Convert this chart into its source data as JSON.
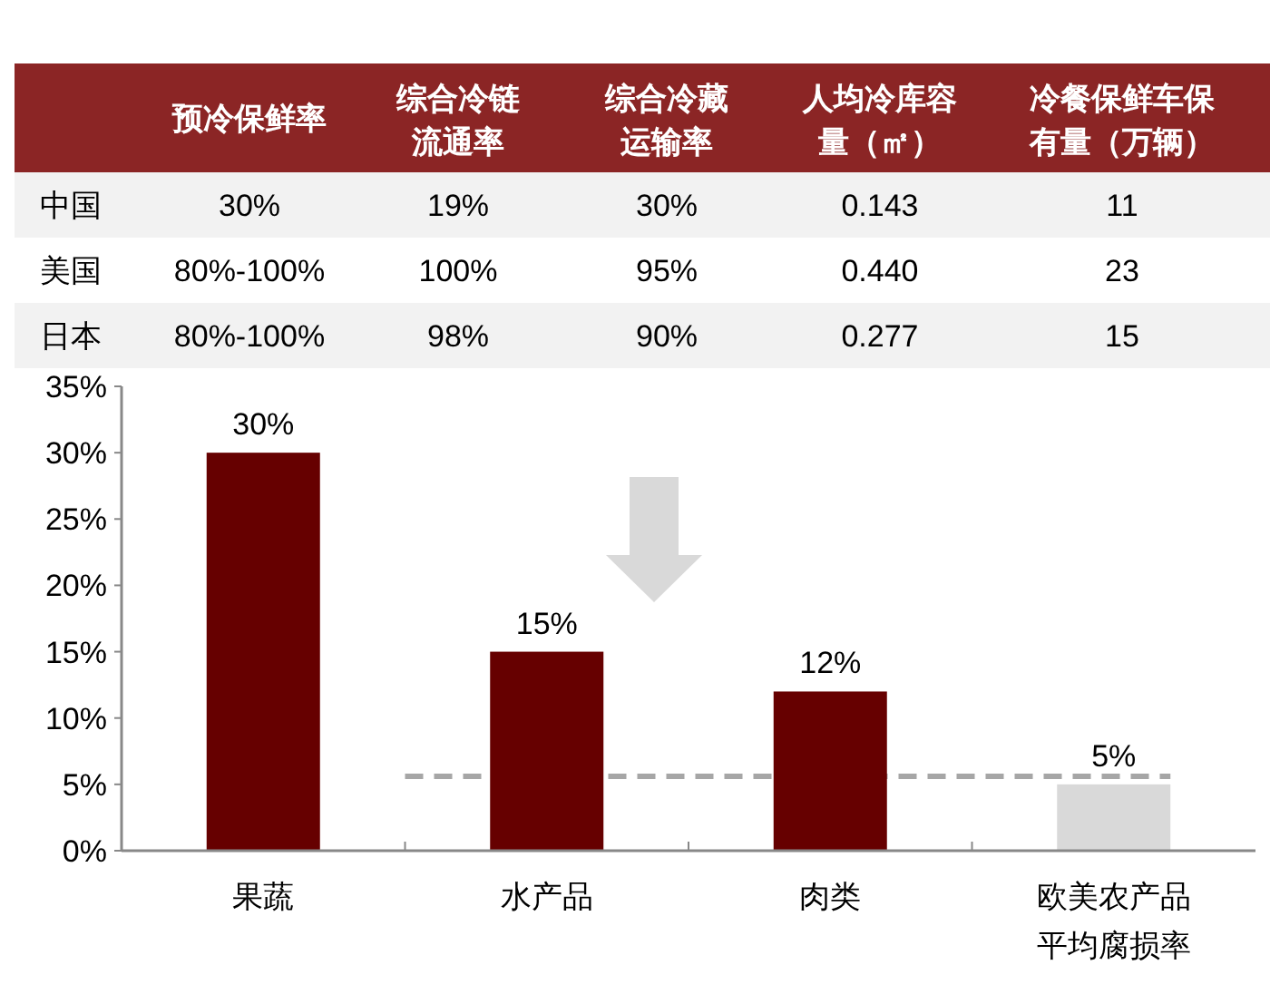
{
  "chart_data": [
    {
      "type": "other",
      "categories": [
        "预冷保鲜率",
        "综合冷链流通率",
        "综合冷藏运输率",
        "人均冷库容量（㎡）",
        "冷餐保鲜车保有量（万辆）"
      ],
      "y_categories": [
        "中国",
        "美国",
        "日本"
      ],
      "cell_labels": [
        [
          "30%",
          "19%",
          "30%",
          "0.143",
          "11"
        ],
        [
          "80%-100%",
          "100%",
          "95%",
          "0.440",
          "23"
        ],
        [
          "80%-100%",
          "98%",
          "90%",
          "0.277",
          "15"
        ]
      ]
    },
    {
      "type": "bar",
      "categories": [
        "果蔬",
        "水产品",
        "肉类",
        "欧美农产品平均腐损率"
      ],
      "values": [
        30,
        15,
        12,
        5
      ],
      "colors": [
        "#660000",
        "#660000",
        "#660000",
        "#d9d9d9"
      ],
      "value_labels": [
        "30%",
        "15%",
        "12%",
        "5%"
      ],
      "ylim": [
        0,
        35
      ],
      "yticks": [
        {
          "value": 0,
          "label": "0%"
        },
        {
          "value": 5,
          "label": "5%"
        },
        {
          "value": 10,
          "label": "10%"
        },
        {
          "value": 15,
          "label": "15%"
        },
        {
          "value": 20,
          "label": "20%"
        },
        {
          "value": 25,
          "label": "25%"
        },
        {
          "value": 30,
          "label": "30%"
        },
        {
          "value": 35,
          "label": "35%"
        }
      ],
      "ref_lines": [
        {
          "axis": "y",
          "value": 5.6,
          "color": "#a6a6a6",
          "line_style": "dashed"
        }
      ]
    }
  ]
}
